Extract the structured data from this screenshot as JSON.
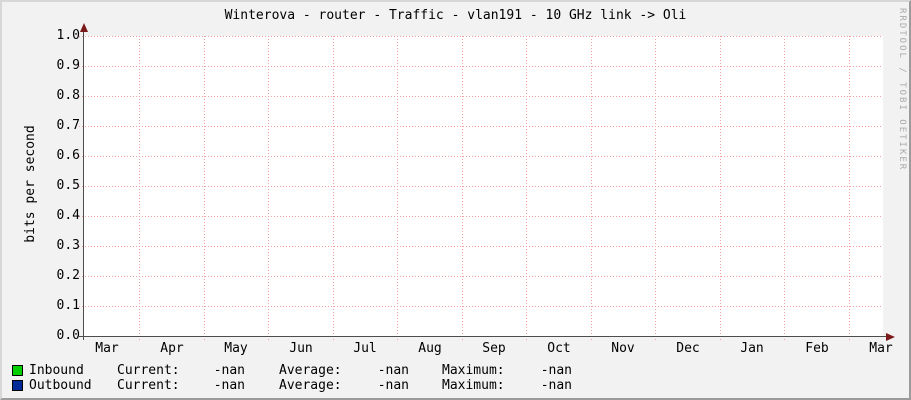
{
  "chart_data": {
    "type": "line",
    "title": "Winterova - router - Traffic - vlan191 - 10 GHz link -> Oli",
    "ylabel": "bits per second",
    "watermark": "RRDTOOL / TOBI OETIKER",
    "ylim": [
      0.0,
      1.0
    ],
    "y_ticks": [
      "0.0",
      "0.1",
      "0.2",
      "0.3",
      "0.4",
      "0.5",
      "0.6",
      "0.7",
      "0.8",
      "0.9",
      "1.0"
    ],
    "x_ticks": [
      "Mar",
      "Apr",
      "May",
      "Jun",
      "Jul",
      "Aug",
      "Sep",
      "Oct",
      "Nov",
      "Dec",
      "Jan",
      "Feb",
      "Mar"
    ],
    "grid": true,
    "legend_position": "bottom",
    "series": [
      {
        "name": "Inbound",
        "color": "#00CF00",
        "values": []
      },
      {
        "name": "Outbound",
        "color": "#002A97",
        "values": []
      }
    ],
    "legend": {
      "columns": [
        "Current:",
        "Average:",
        "Maximum:"
      ],
      "rows": [
        {
          "label": "Inbound",
          "color": "#00CF00",
          "current": "-nan",
          "average": "-nan",
          "maximum": "-nan"
        },
        {
          "label": "Outbound",
          "color": "#002A97",
          "current": "-nan",
          "average": "-nan",
          "maximum": "-nan"
        }
      ]
    },
    "colors": {
      "background": "#f2f2f2",
      "canvas": "#ffffff",
      "major_grid": "#f0a0a0",
      "axis": "#4d4d4d",
      "arrow": "#7a1a1a",
      "watermark_text": "#aaaaaa"
    }
  }
}
